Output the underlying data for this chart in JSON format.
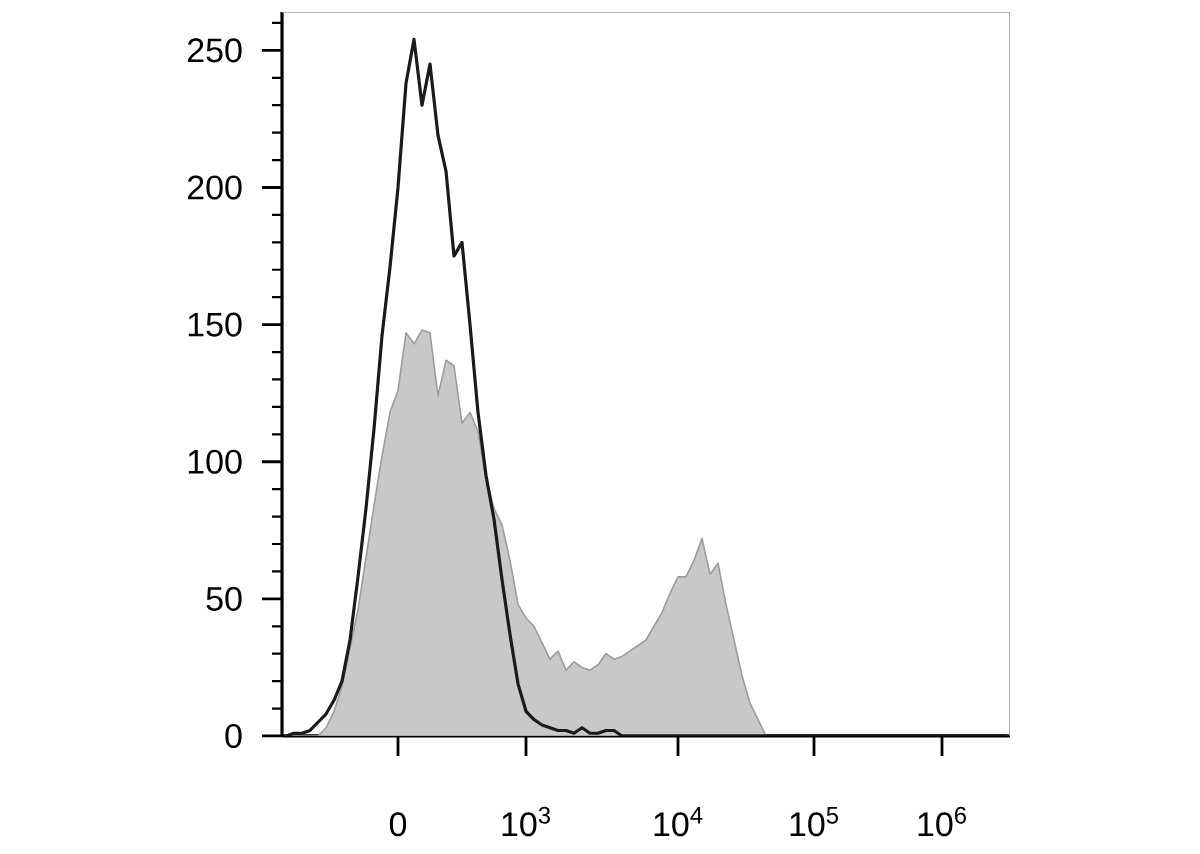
{
  "chart_data": {
    "type": "area",
    "ylim": [
      0,
      264
    ],
    "categories": [
      null,
      null,
      null,
      null,
      null,
      null,
      null,
      null,
      null,
      null,
      null,
      null,
      null,
      null,
      "0",
      null,
      null,
      null,
      null,
      null,
      null,
      null,
      null,
      null,
      null,
      null,
      null,
      null,
      null,
      null,
      "10$^{3}$",
      null,
      null,
      null,
      null,
      null,
      null,
      null,
      null,
      null,
      null,
      null,
      null,
      null,
      null,
      null,
      null,
      null,
      null,
      "10$^{4}$",
      null,
      null,
      null,
      null,
      null,
      null,
      null,
      null,
      null,
      null,
      null,
      null,
      null,
      null,
      null,
      null,
      "10$^{5}$",
      null,
      null,
      null,
      null,
      null,
      null,
      null,
      null,
      null,
      null,
      null,
      null,
      null,
      null,
      null,
      "10$^{6}$",
      null,
      null,
      null,
      null,
      null,
      null,
      null,
      null
    ],
    "yticks": [
      0,
      {
        "value": 10,
        "label": null
      },
      {
        "value": 20,
        "label": null
      },
      {
        "value": 30,
        "label": null
      },
      {
        "value": 40,
        "label": null
      },
      50,
      {
        "value": 60,
        "label": null
      },
      {
        "value": 70,
        "label": null
      },
      {
        "value": 80,
        "label": null
      },
      {
        "value": 90,
        "label": null
      },
      100,
      {
        "value": 110,
        "label": null
      },
      {
        "value": 120,
        "label": null
      },
      {
        "value": 130,
        "label": null
      },
      {
        "value": 140,
        "label": null
      },
      150,
      {
        "value": 160,
        "label": null
      },
      {
        "value": 170,
        "label": null
      },
      {
        "value": 180,
        "label": null
      },
      {
        "value": 190,
        "label": null
      },
      200,
      {
        "value": 210,
        "label": null
      },
      {
        "value": 220,
        "label": null
      },
      {
        "value": 230,
        "label": null
      },
      {
        "value": 240,
        "label": null
      },
      250,
      {
        "value": 260,
        "label": null
      }
    ],
    "series": [
      {
        "color": "#c8c8c8",
        "values": [
          0,
          0,
          0,
          0,
          0,
          3,
          9,
          18,
          32,
          46,
          65,
          84,
          102,
          118,
          126,
          147,
          143,
          148,
          147,
          124,
          137,
          135,
          114,
          118,
          111,
          94,
          83,
          77,
          64,
          48,
          43,
          40,
          34,
          28,
          31,
          24,
          27,
          25,
          24,
          26,
          30,
          28,
          29,
          31,
          33,
          35,
          40,
          45,
          52,
          58,
          58,
          64,
          72,
          59,
          63,
          48,
          35,
          22,
          12,
          6,
          0,
          0,
          0,
          0,
          0,
          0,
          0,
          0,
          0,
          0,
          0,
          0,
          0,
          0,
          0,
          0,
          0,
          0,
          0,
          0,
          0,
          0,
          0,
          0,
          0,
          0,
          0,
          0,
          0,
          0,
          0
        ]
      },
      {
        "type": "line",
        "color": "#1a1a1a",
        "values": [
          0,
          1,
          1,
          2,
          5,
          8,
          13,
          20,
          35,
          58,
          83,
          112,
          146,
          171,
          200,
          238,
          254,
          230,
          245,
          219,
          206,
          175,
          180,
          150,
          118,
          95,
          79,
          57,
          37,
          19,
          9,
          6,
          4,
          3,
          2,
          2,
          1,
          3,
          1,
          1,
          2,
          2,
          0,
          0,
          0,
          0,
          0,
          0,
          0,
          0,
          0,
          0,
          0,
          0,
          0,
          0,
          0,
          0,
          0,
          0,
          0,
          0,
          0,
          0,
          0,
          0,
          0,
          0,
          0,
          0,
          0,
          0,
          0,
          0,
          0,
          0,
          0,
          0,
          0,
          0,
          0,
          0,
          0,
          0,
          0,
          0,
          0,
          0,
          0,
          0,
          0
        ]
      }
    ]
  }
}
